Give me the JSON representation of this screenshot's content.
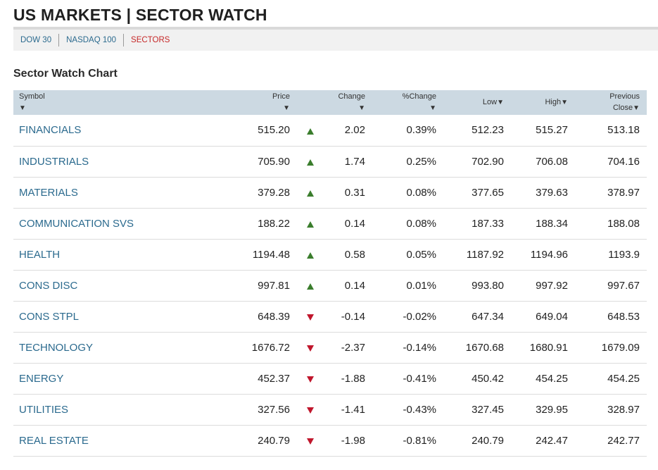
{
  "header": {
    "title": "US MARKETS | SECTOR WATCH"
  },
  "tabs": [
    {
      "label": "DOW 30",
      "active": false
    },
    {
      "label": "NASDAQ 100",
      "active": false
    },
    {
      "label": "SECTORS",
      "active": true
    }
  ],
  "section_title": "Sector Watch Chart",
  "columns": {
    "symbol": "Symbol",
    "price": "Price",
    "change": "Change",
    "pct_change": "%Change",
    "low": "Low",
    "high": "High",
    "prev_close_1": "Previous",
    "prev_close_2": "Close",
    "sort_glyph": "▼"
  },
  "colors": {
    "up": "#3a7d2c",
    "down": "#c0162c",
    "link": "#2b6a8e",
    "active_tab": "#c62828"
  },
  "rows": [
    {
      "symbol": "FINANCIALS",
      "price": "515.20",
      "direction": "up",
      "change": "2.02",
      "pct": "0.39%",
      "low": "512.23",
      "high": "515.27",
      "prev": "513.18"
    },
    {
      "symbol": "INDUSTRIALS",
      "price": "705.90",
      "direction": "up",
      "change": "1.74",
      "pct": "0.25%",
      "low": "702.90",
      "high": "706.08",
      "prev": "704.16"
    },
    {
      "symbol": "MATERIALS",
      "price": "379.28",
      "direction": "up",
      "change": "0.31",
      "pct": "0.08%",
      "low": "377.65",
      "high": "379.63",
      "prev": "378.97"
    },
    {
      "symbol": "COMMUNICATION SVS",
      "price": "188.22",
      "direction": "up",
      "change": "0.14",
      "pct": "0.08%",
      "low": "187.33",
      "high": "188.34",
      "prev": "188.08"
    },
    {
      "symbol": "HEALTH",
      "price": "1194.48",
      "direction": "up",
      "change": "0.58",
      "pct": "0.05%",
      "low": "1187.92",
      "high": "1194.96",
      "prev": "1193.9"
    },
    {
      "symbol": "CONS DISC",
      "price": "997.81",
      "direction": "up",
      "change": "0.14",
      "pct": "0.01%",
      "low": "993.80",
      "high": "997.92",
      "prev": "997.67"
    },
    {
      "symbol": "CONS STPL",
      "price": "648.39",
      "direction": "down",
      "change": "-0.14",
      "pct": "-0.02%",
      "low": "647.34",
      "high": "649.04",
      "prev": "648.53"
    },
    {
      "symbol": "TECHNOLOGY",
      "price": "1676.72",
      "direction": "down",
      "change": "-2.37",
      "pct": "-0.14%",
      "low": "1670.68",
      "high": "1680.91",
      "prev": "1679.09"
    },
    {
      "symbol": "ENERGY",
      "price": "452.37",
      "direction": "down",
      "change": "-1.88",
      "pct": "-0.41%",
      "low": "450.42",
      "high": "454.25",
      "prev": "454.25"
    },
    {
      "symbol": "UTILITIES",
      "price": "327.56",
      "direction": "down",
      "change": "-1.41",
      "pct": "-0.43%",
      "low": "327.45",
      "high": "329.95",
      "prev": "328.97"
    },
    {
      "symbol": "REAL ESTATE",
      "price": "240.79",
      "direction": "down",
      "change": "-1.98",
      "pct": "-0.81%",
      "low": "240.79",
      "high": "242.47",
      "prev": "242.77"
    }
  ]
}
